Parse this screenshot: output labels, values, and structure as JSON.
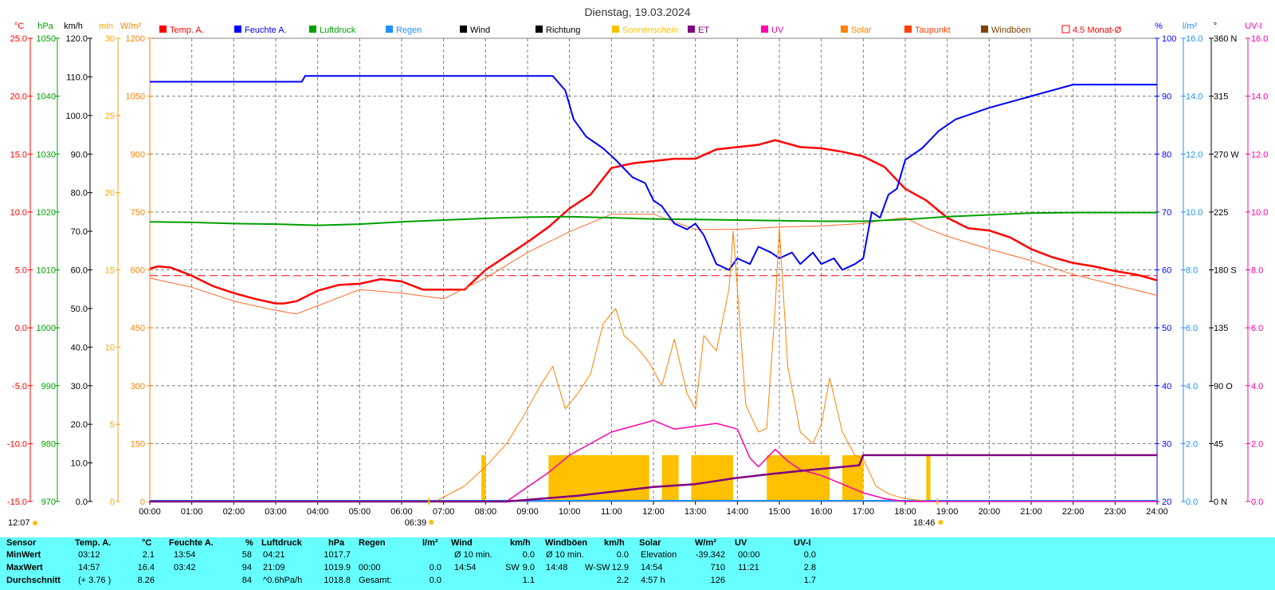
{
  "title": "Dienstag, 19.03.2024",
  "axis_headers": {
    "temp_unit": "°C",
    "hpa_unit": "hPa",
    "kmh_unit": "km/h",
    "min_unit": "min",
    "wm2_unit": "W/m²",
    "pct_unit": "%",
    "lm2_unit": "l/m²",
    "deg_unit": "°",
    "uvi_unit": "UV-I"
  },
  "legend": [
    {
      "label": "Temp. A.",
      "color": "#ff0000"
    },
    {
      "label": "Feuchte A.",
      "color": "#0000ff"
    },
    {
      "label": "Luftdruck",
      "color": "#00a000"
    },
    {
      "label": "Regen",
      "color": "#1e90ff"
    },
    {
      "label": "Wind",
      "color": "#000000"
    },
    {
      "label": "Richtung",
      "color": "#000000"
    },
    {
      "label": "Sonnenschein",
      "color": "#ffc000"
    },
    {
      "label": "ET",
      "color": "#800080"
    },
    {
      "label": "UV",
      "color": "#ff00aa"
    },
    {
      "label": "Solar",
      "color": "#ff8000"
    },
    {
      "label": "Taupunkt",
      "color": "#ff4000"
    },
    {
      "label": "Windböen",
      "color": "#804000"
    },
    {
      "label": "4.5 Monat-Ø",
      "color": "#ff0000"
    }
  ],
  "colors": {
    "temp": "#ff0000",
    "pressure": "#00a000",
    "humidity": "#0000ff",
    "rain": "#1e90ff",
    "sun": "#ffc000",
    "solar": "#ff8000",
    "uv": "#ff00aa",
    "et": "#800080",
    "grid": "#808080",
    "panel": "#66ffff"
  },
  "axes": {
    "temp": {
      "ticks": [
        "25.0",
        "20.0",
        "15.0",
        "10.0",
        "5.0",
        "0.0",
        "-5.0",
        "-10.0",
        "-15.0"
      ]
    },
    "pressure": {
      "ticks": [
        "1050",
        "1040",
        "1030",
        "1020",
        "1010",
        "1000",
        "990",
        "980",
        "970"
      ]
    },
    "kmh": {
      "ticks": [
        "120.0",
        "110.0",
        "100.0",
        "90.0",
        "80.0",
        "70.0",
        "60.0",
        "50.0",
        "40.0",
        "30.0",
        "20.0",
        "10.0",
        "0.0"
      ]
    },
    "minutes": {
      "ticks": [
        "30",
        "25",
        "20",
        "15",
        "10",
        "5",
        "0"
      ]
    },
    "solar": {
      "ticks": [
        "1200",
        "1050",
        "900",
        "750",
        "600",
        "450",
        "300",
        "150",
        "0"
      ]
    },
    "humidity": {
      "ticks": [
        "100",
        "90",
        "80",
        "70",
        "60",
        "50",
        "40",
        "30",
        "20"
      ]
    },
    "rain": {
      "ticks": [
        "16.0",
        "14.0",
        "12.0",
        "10.0",
        "8.0",
        "6.0",
        "4.0",
        "2.0",
        "0.0"
      ]
    },
    "direction": {
      "ticks": [
        "360 N",
        "315",
        "270 W",
        "225",
        "180 S",
        "135",
        "90 O",
        "45",
        "0 N"
      ]
    },
    "uvi": {
      "ticks": [
        "16.0",
        "14.0",
        "12.0",
        "10.0",
        "8.0",
        "6.0",
        "4.0",
        "2.0",
        "0.0"
      ]
    },
    "time": {
      "ticks": [
        "00:00",
        "01:00",
        "02:00",
        "03:00",
        "04:00",
        "05:00",
        "06:00",
        "07:00",
        "08:00",
        "09:00",
        "10:00",
        "11:00",
        "12:00",
        "13:00",
        "14:00",
        "15:00",
        "16:00",
        "17:00",
        "18:00",
        "19:00",
        "20:00",
        "21:00",
        "22:00",
        "23:00",
        "24:00"
      ]
    }
  },
  "markers": {
    "sunrise": "06:39",
    "sunset": "18:46",
    "daylight": "12:07"
  },
  "chart_data": {
    "type": "line",
    "x_unit": "hours",
    "xlim": [
      0,
      24
    ],
    "series": [
      {
        "name": "Temp. A.",
        "axis": "temp",
        "ylim": [
          -15,
          25
        ],
        "x": [
          0,
          0.2,
          0.5,
          1,
          1.5,
          2,
          2.5,
          3,
          3.2,
          3.5,
          4,
          4.5,
          5,
          5.5,
          6,
          6.5,
          7,
          7.5,
          8,
          8.5,
          9,
          9.5,
          10,
          10.5,
          11,
          11.5,
          12,
          12.5,
          13,
          13.5,
          14,
          14.5,
          14.9,
          15.5,
          16,
          16.5,
          17,
          17.5,
          18,
          18.5,
          19,
          19.5,
          20,
          20.5,
          21,
          21.5,
          22,
          22.5,
          23,
          23.5,
          24
        ],
        "y": [
          5.1,
          5.3,
          5.2,
          4.5,
          3.6,
          3.0,
          2.5,
          2.1,
          2.1,
          2.3,
          3.2,
          3.7,
          3.8,
          4.2,
          4.0,
          3.3,
          3.3,
          3.3,
          5.0,
          6.2,
          7.4,
          8.7,
          10.3,
          11.5,
          13.8,
          14.2,
          14.4,
          14.6,
          14.6,
          15.4,
          15.6,
          15.8,
          16.2,
          15.6,
          15.5,
          15.2,
          14.8,
          13.9,
          12.0,
          11.0,
          9.5,
          8.6,
          8.4,
          7.8,
          6.8,
          6.1,
          5.6,
          5.3,
          4.9,
          4.6,
          4.1
        ]
      },
      {
        "name": "Taupunkt",
        "axis": "temp",
        "ylim": [
          -15,
          25
        ],
        "x": [
          0,
          1,
          2,
          3,
          3.5,
          4,
          5,
          6,
          7,
          8,
          9,
          10,
          11,
          12,
          13,
          14,
          15,
          16,
          17,
          17.5,
          18,
          18.5,
          19,
          20,
          21,
          22,
          23,
          24
        ],
        "y": [
          4.3,
          3.5,
          2.3,
          1.5,
          1.2,
          1.9,
          3.3,
          3.0,
          2.5,
          4.3,
          6.5,
          8.3,
          9.8,
          9.8,
          8.5,
          8.5,
          8.7,
          8.8,
          9.0,
          9.3,
          9.5,
          8.6,
          7.9,
          6.8,
          5.8,
          4.6,
          3.7,
          2.8
        ]
      },
      {
        "name": "Luftdruck",
        "axis": "pressure",
        "ylim": [
          970,
          1050
        ],
        "x": [
          0,
          1,
          2,
          3,
          4,
          5,
          6,
          7,
          8,
          9,
          10,
          11,
          12,
          13,
          14,
          15,
          16,
          17,
          18,
          19,
          20,
          21,
          22,
          23,
          24
        ],
        "y": [
          1018.3,
          1018.2,
          1018.0,
          1017.9,
          1017.7,
          1017.9,
          1018.3,
          1018.6,
          1018.9,
          1019.1,
          1019.2,
          1019.0,
          1018.8,
          1018.7,
          1018.6,
          1018.5,
          1018.4,
          1018.4,
          1018.7,
          1019.2,
          1019.5,
          1019.8,
          1019.9,
          1019.9,
          1019.9
        ]
      },
      {
        "name": "Feuchte A.",
        "axis": "humidity",
        "ylim": [
          20,
          100
        ],
        "x": [
          0,
          3.62,
          3.7,
          4.2,
          8,
          9.6,
          9.9,
          10.1,
          10.4,
          10.8,
          11.1,
          11.5,
          11.8,
          12.0,
          12.2,
          12.5,
          12.8,
          13.0,
          13.2,
          13.5,
          13.8,
          14.0,
          14.3,
          14.5,
          14.8,
          15.0,
          15.3,
          15.5,
          15.8,
          16.0,
          16.3,
          16.5,
          16.8,
          17.0,
          17.2,
          17.4,
          17.6,
          17.8,
          18.0,
          18.4,
          18.8,
          19.2,
          19.6,
          20.0,
          20.5,
          21.0,
          21.5,
          22.0,
          23.0,
          24.0
        ],
        "y": [
          92.5,
          92.5,
          93.5,
          93.5,
          93.5,
          93.5,
          91,
          86,
          83,
          81,
          79,
          76,
          75,
          72,
          71,
          68,
          67,
          68,
          66,
          61,
          60,
          62,
          61,
          64,
          63,
          62,
          63,
          61,
          63,
          61,
          62,
          60,
          61,
          62,
          70,
          69,
          73,
          74,
          79,
          81,
          84,
          86,
          87,
          88,
          89,
          90,
          91,
          92,
          92,
          92
        ]
      },
      {
        "name": "Solar",
        "axis": "solar",
        "ylim": [
          0,
          1200
        ],
        "x": [
          0,
          6.8,
          7.5,
          8,
          8.5,
          8.9,
          9.3,
          9.6,
          9.9,
          10.2,
          10.5,
          10.8,
          11.1,
          11.3,
          11.6,
          11.9,
          12.2,
          12.5,
          12.8,
          13.0,
          13.2,
          13.5,
          13.8,
          13.9,
          14.2,
          14.5,
          14.7,
          14.9,
          15.0,
          15.2,
          15.5,
          15.8,
          16.0,
          16.2,
          16.5,
          16.8,
          17.0,
          17.3,
          17.6,
          17.9,
          18.2,
          18.6,
          18.9,
          24
        ],
        "y": [
          0,
          0,
          40,
          90,
          150,
          220,
          300,
          350,
          240,
          280,
          330,
          460,
          500,
          430,
          400,
          360,
          300,
          420,
          280,
          240,
          430,
          390,
          550,
          700,
          250,
          180,
          190,
          500,
          710,
          350,
          180,
          150,
          200,
          320,
          180,
          120,
          110,
          40,
          20,
          10,
          5,
          0,
          0,
          0
        ]
      },
      {
        "name": "UV",
        "axis": "uvi",
        "ylim": [
          0,
          16
        ],
        "x": [
          0,
          8.5,
          9.0,
          9.5,
          10.0,
          10.5,
          11.0,
          11.5,
          12.0,
          12.5,
          13.0,
          13.5,
          14.0,
          14.3,
          14.5,
          14.9,
          15.2,
          15.5,
          16.0,
          16.5,
          17.0,
          17.5,
          18.0,
          24
        ],
        "y": [
          0,
          0,
          0.5,
          1.0,
          1.6,
          2.0,
          2.4,
          2.6,
          2.8,
          2.5,
          2.6,
          2.7,
          2.5,
          1.5,
          1.2,
          1.8,
          1.4,
          1.1,
          0.9,
          0.6,
          0.3,
          0.1,
          0,
          0
        ]
      },
      {
        "name": "ET",
        "axis": "rain",
        "ylim": [
          0,
          16
        ],
        "x": [
          0,
          8.5,
          10.2,
          11.1,
          12.0,
          13.0,
          13.9,
          14.8,
          15.8,
          16.9,
          17.0,
          24
        ],
        "y": [
          0,
          0,
          0.2,
          0.35,
          0.5,
          0.6,
          0.8,
          0.95,
          1.1,
          1.25,
          1.6,
          1.6
        ]
      }
    ],
    "sunshine_blocks": [
      {
        "start": 7.9,
        "end": 8.0
      },
      {
        "start": 9.5,
        "end": 11.9
      },
      {
        "start": 12.2,
        "end": 12.6
      },
      {
        "start": 12.9,
        "end": 13.9
      },
      {
        "start": 14.7,
        "end": 16.2
      },
      {
        "start": 16.5,
        "end": 17.0
      },
      {
        "start": 18.5,
        "end": 18.6
      }
    ],
    "reference_line": {
      "name": "4.5 Monat-Ø",
      "axis": "temp",
      "value": 4.5
    }
  },
  "stats": {
    "headers": {
      "sensor": "Sensor",
      "temp": "Temp. A.",
      "temp_unit": "°C",
      "hum": "Feuchte A.",
      "hum_unit": "%",
      "press": "Luftdruck",
      "press_unit": "hPa",
      "rain": "Regen",
      "rain_unit": "l/m²",
      "wind": "Wind",
      "wind_unit": "km/h",
      "gust": "Windböen",
      "gust_unit": "km/h",
      "solar": "Solar",
      "solar_unit": "W/m²",
      "uv": "UV",
      "uvi": "UV-I"
    },
    "rows": [
      {
        "label": "MinWert",
        "temp_time": "03:12",
        "temp": "2.1",
        "hum_time": "13:54",
        "hum": "58",
        "press_time": "04:21",
        "press": "1017.7",
        "rain_time": "",
        "rain": "",
        "wind_time": "Ø 10 min.",
        "wind_dir": "",
        "wind": "0.0",
        "gust_time": "Ø 10 min.",
        "gust_dir": "",
        "gust": "0.0",
        "solar_time": "Elevation",
        "solar": "-39.342",
        "uv_time": "00:00",
        "uvi": "0.0"
      },
      {
        "label": "MaxWert",
        "temp_time": "14:57",
        "temp": "16.4",
        "hum_time": "03:42",
        "hum": "94",
        "press_time": "21:09",
        "press": "1019.9",
        "rain_time": "00:00",
        "rain": "0.0",
        "wind_time": "14:54",
        "wind_dir": "SW",
        "wind": "9.0",
        "gust_time": "14:48",
        "gust_dir": "W-SW",
        "gust": "12.9",
        "solar_time": "14:54",
        "solar": "710",
        "uv_time": "11:21",
        "uvi": "2.8"
      },
      {
        "label": "Durchschnitt",
        "temp_time": "(+ 3.76 )",
        "temp": "8.26",
        "hum_time": "",
        "hum": "84",
        "press_time": "^0.6hPa/h",
        "press": "1018.8",
        "rain_time": "Gesamt:",
        "rain": "0.0",
        "wind_time": "",
        "wind_dir": "",
        "wind": "1.1",
        "gust_time": "",
        "gust_dir": "",
        "gust": "2.2",
        "solar_time": "4:57 h",
        "solar": "126",
        "uv_time": "",
        "uvi": "1.7"
      }
    ]
  }
}
